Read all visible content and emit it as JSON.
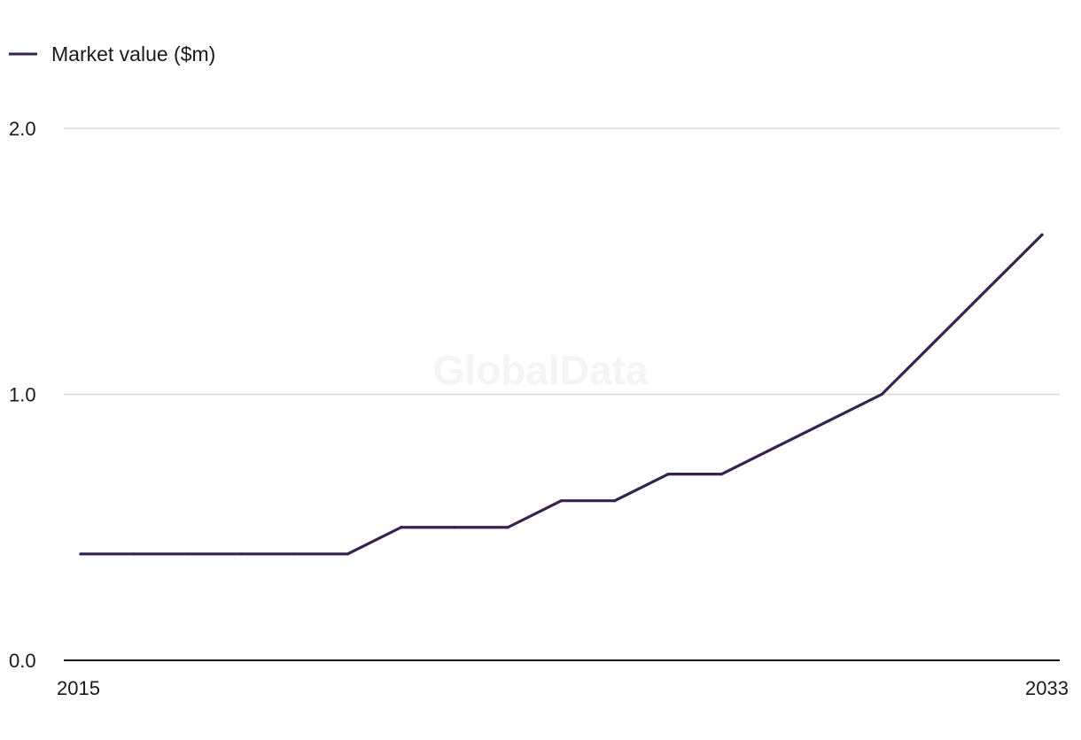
{
  "chart_data": {
    "type": "line",
    "title": "",
    "xlabel": "",
    "ylabel": "",
    "x": [
      2015,
      2016,
      2017,
      2018,
      2019,
      2020,
      2021,
      2022,
      2023,
      2024,
      2025,
      2026,
      2027,
      2028,
      2029,
      2030,
      2031,
      2032,
      2033
    ],
    "series": [
      {
        "name": "Market value ($m)",
        "color": "#35224f",
        "values": [
          0.4,
          0.4,
          0.4,
          0.4,
          0.4,
          0.4,
          0.5,
          0.5,
          0.5,
          0.6,
          0.6,
          0.7,
          0.7,
          0.8,
          0.9,
          1.0,
          1.2,
          1.4,
          1.6
        ]
      }
    ],
    "ylim": [
      0,
      2
    ],
    "yticks": [
      "0.0",
      "1.0",
      "2.0"
    ],
    "xticks": [
      "2015",
      "2033"
    ],
    "grid": true,
    "legend_position": "top-left",
    "watermark": "GlobalData"
  }
}
